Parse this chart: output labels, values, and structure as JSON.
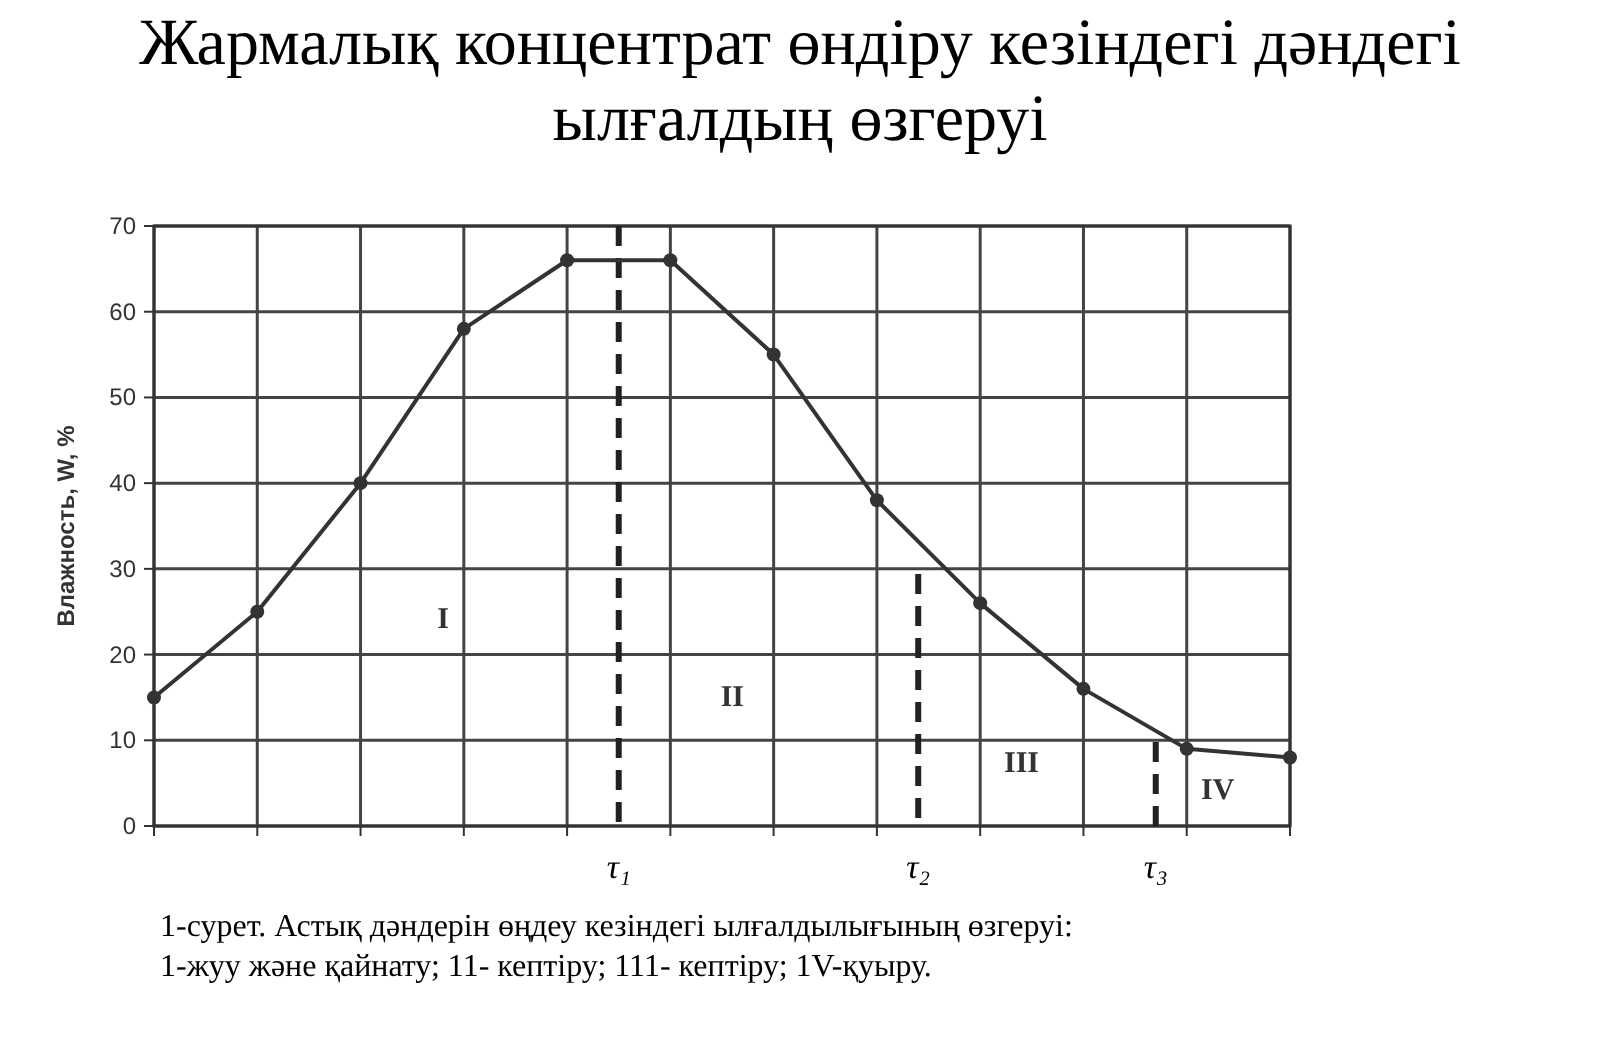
{
  "chart_data": {
    "type": "line",
    "title": "Жармалық концентрат өндіру кезіндегі дәндегі ылғалдың өзгеруі",
    "ylabel": "Влажность, W, %",
    "categories": [
      null,
      null,
      null,
      null,
      null,
      null,
      null,
      null,
      null,
      null,
      null,
      null
    ],
    "series": [
      {
        "color": "#333333",
        "values": [
          15,
          25,
          40,
          58,
          66,
          66,
          55,
          38,
          26,
          16,
          9,
          8
        ]
      }
    ],
    "ylim": [
      0,
      70
    ],
    "yticks": [
      0,
      10,
      20,
      30,
      40,
      50,
      60,
      70
    ],
    "grid": true,
    "marker": "circle",
    "line_style": "solid",
    "annotations": [
      {
        "text": "τ₁"
      },
      {
        "text": "τ₂"
      },
      {
        "text": "τ₃"
      },
      {
        "text": "I"
      },
      {
        "text": "II"
      },
      {
        "text": "III"
      },
      {
        "text": "IV"
      },
      "1-сурет. Астық дәндерін өңдеу кезіндегі ылғалдылығының өзгеруі: 1-жуу және қайнату; 11- кептіру; 111- кептіру; 1V-қуыру."
    ]
  }
}
